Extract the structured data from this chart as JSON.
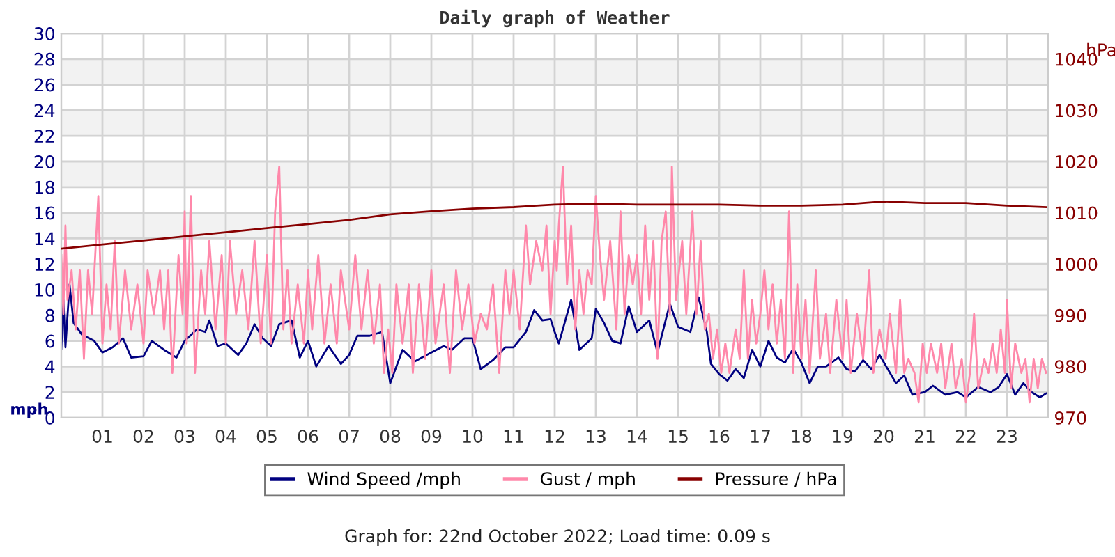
{
  "chart_data": {
    "type": "line",
    "title": "Daily graph of Weather",
    "ylabel": "mph",
    "y2label": "hPa",
    "annotations": [
      "Graph for: 22nd October 2022; Load time: 0.09 s"
    ],
    "xlim": [
      0,
      24
    ],
    "xticks": [
      {
        "value": 1,
        "label": "01"
      },
      {
        "value": 2,
        "label": "02"
      },
      {
        "value": 3,
        "label": "03"
      },
      {
        "value": 4,
        "label": "04"
      },
      {
        "value": 5,
        "label": "05"
      },
      {
        "value": 6,
        "label": "06"
      },
      {
        "value": 7,
        "label": "07"
      },
      {
        "value": 8,
        "label": "08"
      },
      {
        "value": 9,
        "label": "09"
      },
      {
        "value": 10,
        "label": "10"
      },
      {
        "value": 11,
        "label": "11"
      },
      {
        "value": 12,
        "label": "12"
      },
      {
        "value": 13,
        "label": "13"
      },
      {
        "value": 14,
        "label": "14"
      },
      {
        "value": 15,
        "label": "15"
      },
      {
        "value": 16,
        "label": "16"
      },
      {
        "value": 17,
        "label": "17"
      },
      {
        "value": 18,
        "label": "18"
      },
      {
        "value": 19,
        "label": "19"
      },
      {
        "value": 20,
        "label": "20"
      },
      {
        "value": 21,
        "label": "21"
      },
      {
        "value": 22,
        "label": "22"
      },
      {
        "value": 23,
        "label": "23"
      }
    ],
    "ylim": [
      0,
      30
    ],
    "yticks": [
      0,
      2,
      4,
      6,
      8,
      10,
      12,
      14,
      16,
      18,
      20,
      22,
      24,
      26,
      28,
      30
    ],
    "y2lim": [
      970,
      1045
    ],
    "y2ticks": [
      970,
      980,
      990,
      1000,
      1010,
      1020,
      1030,
      1040
    ],
    "grid": true,
    "legend": "bottom",
    "marker": "none",
    "line_style": "solid",
    "bands": [
      {
        "axis": "y",
        "from": 2,
        "to": 4,
        "color": "#f2f2f2"
      },
      {
        "axis": "y",
        "from": 6,
        "to": 8,
        "color": "#f2f2f2"
      },
      {
        "axis": "y",
        "from": 10,
        "to": 12,
        "color": "#f2f2f2"
      },
      {
        "axis": "y",
        "from": 14,
        "to": 16,
        "color": "#f2f2f2"
      },
      {
        "axis": "y",
        "from": 18,
        "to": 20,
        "color": "#f2f2f2"
      },
      {
        "axis": "y",
        "from": 22,
        "to": 24,
        "color": "#f2f2f2"
      },
      {
        "axis": "y",
        "from": 26,
        "to": 28,
        "color": "#f2f2f2"
      }
    ],
    "series": [
      {
        "name": "Wind Speed /mph",
        "color": "#000080",
        "axis": "y",
        "x": [
          0.0,
          0.05,
          0.1,
          0.2,
          0.3,
          0.5,
          0.8,
          1.0,
          1.25,
          1.5,
          1.7,
          2.0,
          2.2,
          2.5,
          2.8,
          3.0,
          3.3,
          3.5,
          3.6,
          3.8,
          4.0,
          4.3,
          4.5,
          4.7,
          4.9,
          5.1,
          5.3,
          5.6,
          5.8,
          6.0,
          6.2,
          6.5,
          6.8,
          7.0,
          7.2,
          7.5,
          7.8,
          8.0,
          8.3,
          8.6,
          9.0,
          9.3,
          9.5,
          9.8,
          10.0,
          10.2,
          10.5,
          10.8,
          11.0,
          11.3,
          11.5,
          11.7,
          11.9,
          12.0,
          12.1,
          12.4,
          12.6,
          12.9,
          13.0,
          13.2,
          13.4,
          13.6,
          13.8,
          14.0,
          14.3,
          14.5,
          14.8,
          15.0,
          15.3,
          15.5,
          15.7,
          15.8,
          16.0,
          16.2,
          16.4,
          16.6,
          16.8,
          17.0,
          17.2,
          17.4,
          17.6,
          17.8,
          18.0,
          18.2,
          18.4,
          18.6,
          18.9,
          19.1,
          19.3,
          19.5,
          19.7,
          19.9,
          20.1,
          20.3,
          20.5,
          20.7,
          21.0,
          21.2,
          21.5,
          21.8,
          22.0,
          22.3,
          22.6,
          22.8,
          23.0,
          23.2,
          23.4,
          23.6,
          23.8,
          23.95
        ],
        "values": [
          5.4,
          9.2,
          5.5,
          10.4,
          7.4,
          6.5,
          6.0,
          5.1,
          5.5,
          6.2,
          4.7,
          4.8,
          6.0,
          5.3,
          4.7,
          6.0,
          6.9,
          6.7,
          7.6,
          5.6,
          5.8,
          4.9,
          5.8,
          7.3,
          6.2,
          5.6,
          7.3,
          7.6,
          4.7,
          6.0,
          4.0,
          5.6,
          4.2,
          4.9,
          6.4,
          6.4,
          6.7,
          2.7,
          5.3,
          4.4,
          5.1,
          5.6,
          5.3,
          6.2,
          6.2,
          3.8,
          4.5,
          5.5,
          5.5,
          6.7,
          8.4,
          7.6,
          7.7,
          6.7,
          5.8,
          9.2,
          5.3,
          6.2,
          8.5,
          7.4,
          6.0,
          5.8,
          8.7,
          6.7,
          7.6,
          5.1,
          8.9,
          7.1,
          6.7,
          9.4,
          6.7,
          4.2,
          3.4,
          2.9,
          3.8,
          3.1,
          5.3,
          4.0,
          6.0,
          4.7,
          4.3,
          5.4,
          4.3,
          2.7,
          4.0,
          4.0,
          4.7,
          3.8,
          3.6,
          4.5,
          3.8,
          4.9,
          3.8,
          2.7,
          3.3,
          1.8,
          2.0,
          2.5,
          1.8,
          2.0,
          1.6,
          2.4,
          2.0,
          2.4,
          3.4,
          1.8,
          2.7,
          2.0,
          1.6,
          1.9
        ]
      },
      {
        "name": "Gust / mph",
        "color": "#ff88aa",
        "axis": "y",
        "x": [
          0.0,
          0.05,
          0.1,
          0.15,
          0.25,
          0.35,
          0.45,
          0.55,
          0.65,
          0.75,
          0.9,
          1.0,
          1.1,
          1.2,
          1.3,
          1.4,
          1.55,
          1.7,
          1.85,
          2.0,
          2.1,
          2.25,
          2.4,
          2.5,
          2.6,
          2.7,
          2.85,
          2.95,
          3.0,
          3.05,
          3.15,
          3.25,
          3.4,
          3.5,
          3.6,
          3.75,
          3.9,
          4.0,
          4.1,
          4.25,
          4.4,
          4.55,
          4.7,
          4.85,
          5.0,
          5.1,
          5.2,
          5.3,
          5.4,
          5.5,
          5.6,
          5.75,
          5.9,
          6.0,
          6.1,
          6.25,
          6.4,
          6.55,
          6.7,
          6.8,
          7.0,
          7.15,
          7.3,
          7.45,
          7.6,
          7.75,
          7.85,
          7.95,
          8.05,
          8.15,
          8.3,
          8.45,
          8.55,
          8.7,
          8.85,
          9.0,
          9.1,
          9.3,
          9.45,
          9.6,
          9.75,
          9.9,
          10.05,
          10.2,
          10.35,
          10.5,
          10.65,
          10.8,
          10.9,
          11.0,
          11.15,
          11.3,
          11.4,
          11.55,
          11.7,
          11.8,
          11.9,
          12.0,
          12.05,
          12.1,
          12.2,
          12.3,
          12.4,
          12.5,
          12.6,
          12.7,
          12.8,
          12.9,
          13.0,
          13.1,
          13.2,
          13.35,
          13.5,
          13.6,
          13.7,
          13.8,
          13.9,
          14.0,
          14.1,
          14.2,
          14.3,
          14.4,
          14.5,
          14.6,
          14.7,
          14.8,
          14.85,
          14.95,
          15.1,
          15.2,
          15.35,
          15.45,
          15.55,
          15.65,
          15.75,
          15.85,
          15.95,
          16.05,
          16.15,
          16.25,
          16.4,
          16.5,
          16.6,
          16.7,
          16.8,
          16.9,
          17.0,
          17.1,
          17.2,
          17.3,
          17.4,
          17.5,
          17.6,
          17.7,
          17.8,
          17.9,
          18.0,
          18.1,
          18.2,
          18.35,
          18.45,
          18.6,
          18.7,
          18.85,
          19.0,
          19.1,
          19.2,
          19.35,
          19.5,
          19.65,
          19.75,
          19.9,
          20.05,
          20.15,
          20.3,
          20.4,
          20.5,
          20.6,
          20.75,
          20.85,
          20.95,
          21.05,
          21.15,
          21.3,
          21.4,
          21.5,
          21.65,
          21.75,
          21.9,
          22.0,
          22.1,
          22.2,
          22.3,
          22.45,
          22.55,
          22.65,
          22.75,
          22.85,
          22.95,
          23.0,
          23.1,
          23.2,
          23.35,
          23.45,
          23.55,
          23.65,
          23.75,
          23.85,
          23.95
        ],
        "values": [
          12.7,
          8.1,
          15.0,
          9.2,
          11.5,
          6.9,
          11.5,
          4.6,
          11.5,
          8.1,
          17.3,
          5.8,
          10.4,
          6.9,
          13.8,
          5.8,
          11.5,
          6.9,
          10.4,
          5.8,
          11.5,
          8.1,
          11.5,
          6.9,
          11.5,
          3.5,
          12.7,
          8.1,
          16.1,
          5.8,
          17.3,
          3.5,
          11.5,
          8.1,
          13.8,
          6.9,
          12.7,
          5.8,
          13.8,
          8.1,
          11.5,
          6.9,
          13.8,
          5.8,
          12.7,
          5.8,
          16.1,
          19.6,
          6.9,
          11.5,
          5.8,
          10.4,
          5.8,
          11.5,
          6.9,
          12.7,
          5.8,
          10.4,
          5.8,
          11.5,
          6.9,
          12.7,
          6.9,
          11.5,
          5.8,
          10.4,
          3.5,
          6.9,
          3.5,
          10.4,
          5.8,
          10.4,
          3.5,
          10.4,
          4.6,
          11.5,
          5.8,
          10.4,
          3.5,
          11.5,
          6.9,
          10.4,
          5.8,
          8.1,
          6.9,
          10.4,
          3.5,
          11.5,
          8.1,
          11.5,
          6.9,
          15.0,
          10.4,
          13.8,
          11.5,
          15.0,
          8.1,
          13.8,
          11.5,
          15.0,
          19.6,
          10.4,
          15.0,
          6.9,
          11.5,
          8.1,
          11.5,
          10.4,
          17.3,
          12.7,
          9.2,
          13.8,
          6.9,
          16.1,
          8.1,
          12.7,
          10.4,
          12.7,
          8.1,
          15.0,
          9.2,
          13.8,
          4.6,
          13.8,
          16.1,
          8.1,
          19.6,
          9.2,
          13.8,
          8.1,
          16.1,
          8.1,
          13.8,
          6.9,
          8.1,
          4.6,
          6.9,
          3.5,
          5.8,
          3.5,
          6.9,
          4.6,
          11.5,
          4.6,
          9.2,
          5.8,
          8.1,
          11.5,
          6.9,
          10.4,
          5.8,
          9.2,
          4.6,
          16.1,
          3.5,
          10.4,
          4.6,
          9.2,
          3.5,
          11.5,
          4.6,
          8.1,
          3.5,
          9.2,
          4.6,
          9.2,
          3.5,
          8.1,
          4.6,
          11.5,
          3.5,
          6.9,
          4.6,
          8.1,
          3.5,
          9.2,
          3.5,
          4.6,
          3.5,
          1.2,
          5.8,
          3.5,
          5.8,
          3.5,
          5.8,
          2.3,
          5.8,
          2.3,
          4.6,
          1.2,
          3.5,
          8.1,
          2.3,
          4.6,
          3.5,
          5.8,
          3.5,
          6.9,
          3.5,
          9.2,
          2.3,
          5.8,
          3.5,
          4.6,
          1.2,
          4.6,
          2.3,
          4.6,
          3.5
        ]
      },
      {
        "name": "Pressure / hPa",
        "color": "#880000",
        "axis": "y2",
        "x": [
          0,
          1,
          2,
          3,
          4,
          5,
          6,
          7,
          8,
          9,
          10,
          11,
          12,
          13,
          14,
          15,
          16,
          17,
          18,
          19,
          20,
          21,
          22,
          23,
          23.95
        ],
        "values": [
          1003.0,
          1003.8,
          1004.6,
          1005.4,
          1006.2,
          1007.0,
          1007.8,
          1008.6,
          1009.7,
          1010.3,
          1010.8,
          1011.1,
          1011.6,
          1011.8,
          1011.6,
          1011.6,
          1011.6,
          1011.4,
          1011.4,
          1011.6,
          1012.2,
          1011.9,
          1011.9,
          1011.4,
          1011.1
        ]
      }
    ]
  }
}
